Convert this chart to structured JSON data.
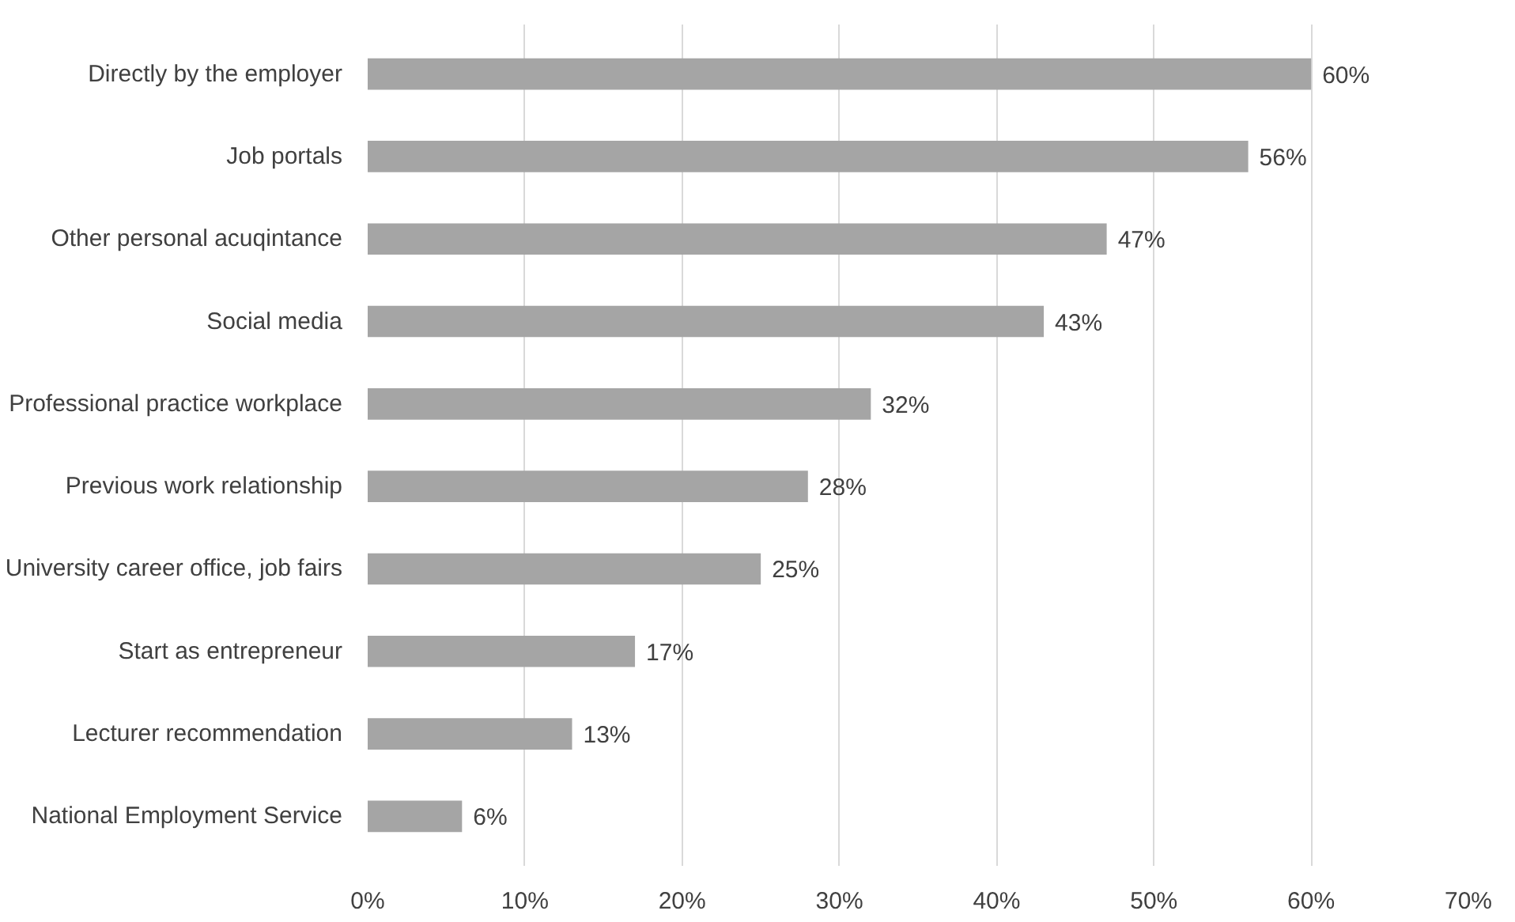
{
  "chart_data": {
    "type": "bar",
    "orientation": "horizontal",
    "categories": [
      "Directly by the employer",
      "Job portals",
      "Other personal acuqintance",
      "Social media",
      "Professional practice workplace",
      "Previous work relationship",
      "University career office, job fairs",
      "Start as entrepreneur",
      "Lecturer recommendation",
      "National Employment Service"
    ],
    "values": [
      60,
      56,
      47,
      43,
      32,
      28,
      25,
      17,
      13,
      6
    ],
    "value_labels": [
      "60%",
      "56%",
      "47%",
      "43%",
      "32%",
      "28%",
      "25%",
      "17%",
      "13%",
      "6%"
    ],
    "color": "#a5a5a5",
    "xlim": [
      0,
      70
    ],
    "xticks": [
      {
        "value": 0,
        "label": "0%"
      },
      {
        "value": 10,
        "label": "10%"
      },
      {
        "value": 20,
        "label": "20%"
      },
      {
        "value": 30,
        "label": "30%"
      },
      {
        "value": 40,
        "label": "40%"
      },
      {
        "value": 50,
        "label": "50%"
      },
      {
        "value": 60,
        "label": "60%"
      },
      {
        "value": 70,
        "label": "70%"
      }
    ],
    "grid": "x"
  }
}
